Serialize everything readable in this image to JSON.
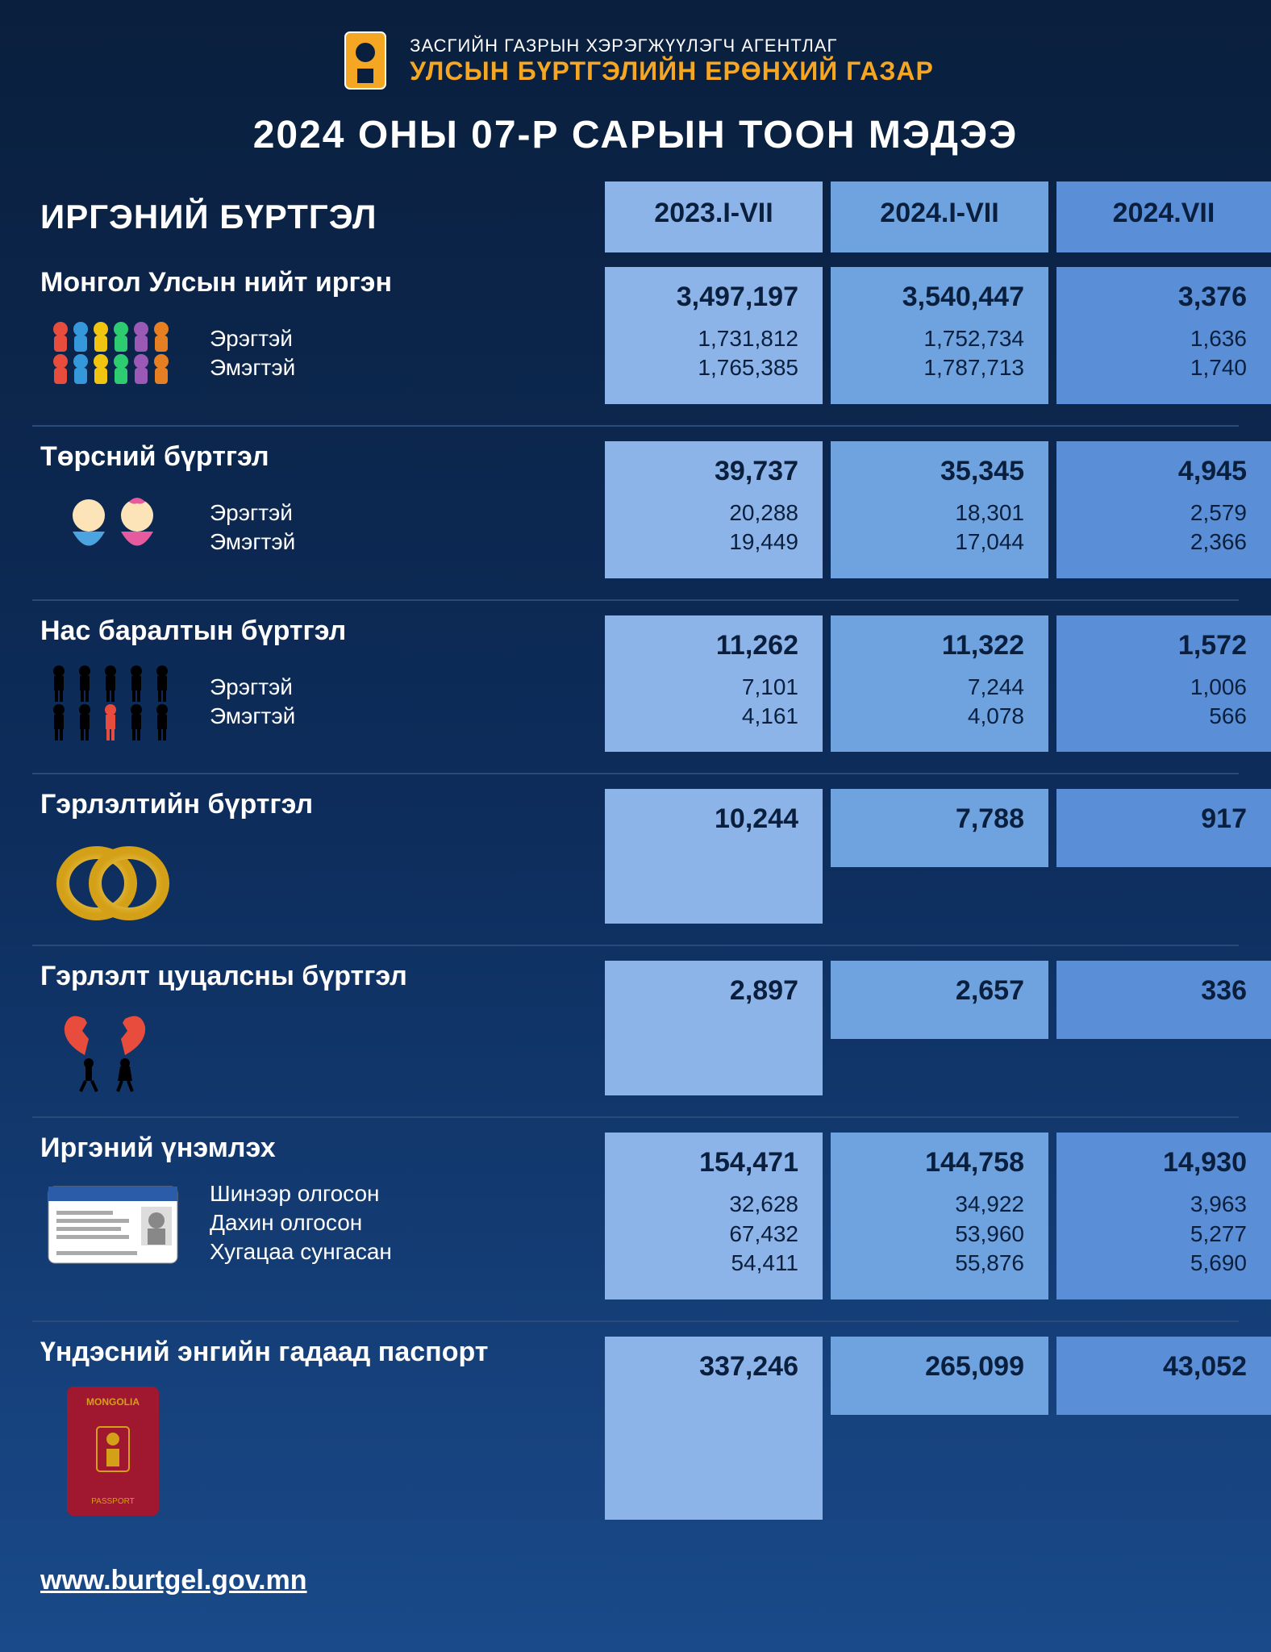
{
  "header": {
    "agency_sub": "ЗАСГИЙН ГАЗРЫН ХЭРЭГЖҮҮЛЭГЧ АГЕНТЛАГ",
    "agency_main": "УЛСЫН БҮРТГЭЛИЙН ЕРӨНХИЙ ГАЗАР",
    "main_title": "2024 ОНЫ 07-Р САРЫН ТООН МЭДЭЭ"
  },
  "columns": {
    "section_title": "ИРГЭНИЙ БҮРТГЭЛ",
    "col1": "2023.I-VII",
    "col2": "2024.I-VII",
    "col3": "2024.VII"
  },
  "colors": {
    "bg_top": "#0a1f3d",
    "bg_bottom": "#1a4a8a",
    "accent": "#f5a623",
    "col1_bg": "#8db4e8",
    "col2_bg": "#6fa3e0",
    "col3_bg": "#5a8fd8",
    "text": "#ffffff"
  },
  "rows": [
    {
      "title": "Монгол Улсын нийт иргэн",
      "icon": "crowd",
      "subs": [
        "Эрэгтэй",
        "Эмэгтэй"
      ],
      "vals": {
        "c1": {
          "main": "3,497,197",
          "subs": [
            "1,731,812",
            "1,765,385"
          ]
        },
        "c2": {
          "main": "3,540,447",
          "subs": [
            "1,752,734",
            "1,787,713"
          ]
        },
        "c3": {
          "main": "3,376",
          "subs": [
            "1,636",
            "1,740"
          ]
        }
      }
    },
    {
      "title": "Төрсний бүртгэл",
      "icon": "babies",
      "subs": [
        "Эрэгтэй",
        "Эмэгтэй"
      ],
      "vals": {
        "c1": {
          "main": "39,737",
          "subs": [
            "20,288",
            "19,449"
          ]
        },
        "c2": {
          "main": "35,345",
          "subs": [
            "18,301",
            "17,044"
          ]
        },
        "c3": {
          "main": "4,945",
          "subs": [
            "2,579",
            "2,366"
          ]
        }
      }
    },
    {
      "title": "Нас баралтын бүртгэл",
      "icon": "people-red",
      "subs": [
        "Эрэгтэй",
        "Эмэгтэй"
      ],
      "vals": {
        "c1": {
          "main": "11,262",
          "subs": [
            "7,101",
            "4,161"
          ]
        },
        "c2": {
          "main": "11,322",
          "subs": [
            "7,244",
            "4,078"
          ]
        },
        "c3": {
          "main": "1,572",
          "subs": [
            "1,006",
            "566"
          ]
        }
      }
    },
    {
      "title": "Гэрлэлтийн бүртгэл",
      "icon": "rings",
      "subs": [],
      "vals": {
        "c1": {
          "main": "10,244",
          "subs": []
        },
        "c2": {
          "main": "7,788",
          "subs": []
        },
        "c3": {
          "main": "917",
          "subs": []
        }
      }
    },
    {
      "title": "Гэрлэлт цуцалсны бүртгэл",
      "icon": "broken-heart",
      "subs": [],
      "vals": {
        "c1": {
          "main": "2,897",
          "subs": []
        },
        "c2": {
          "main": "2,657",
          "subs": []
        },
        "c3": {
          "main": "336",
          "subs": []
        }
      }
    },
    {
      "title": "Иргэний үнэмлэх",
      "icon": "id-card",
      "subs": [
        "Шинээр олгосон",
        "Дахин олгосон",
        "Хугацаа сунгасан"
      ],
      "vals": {
        "c1": {
          "main": "154,471",
          "subs": [
            "32,628",
            "67,432",
            "54,411"
          ]
        },
        "c2": {
          "main": "144,758",
          "subs": [
            "34,922",
            "53,960",
            "55,876"
          ]
        },
        "c3": {
          "main": "14,930",
          "subs": [
            "3,963",
            "5,277",
            "5,690"
          ]
        }
      }
    },
    {
      "title": "Үндэсний энгийн гадаад паспорт",
      "icon": "passport",
      "subs": [],
      "vals": {
        "c1": {
          "main": "337,246",
          "subs": []
        },
        "c2": {
          "main": "265,099",
          "subs": []
        },
        "c3": {
          "main": "43,052",
          "subs": []
        }
      }
    }
  ],
  "footer": {
    "url": "www.burtgel.gov.mn"
  }
}
